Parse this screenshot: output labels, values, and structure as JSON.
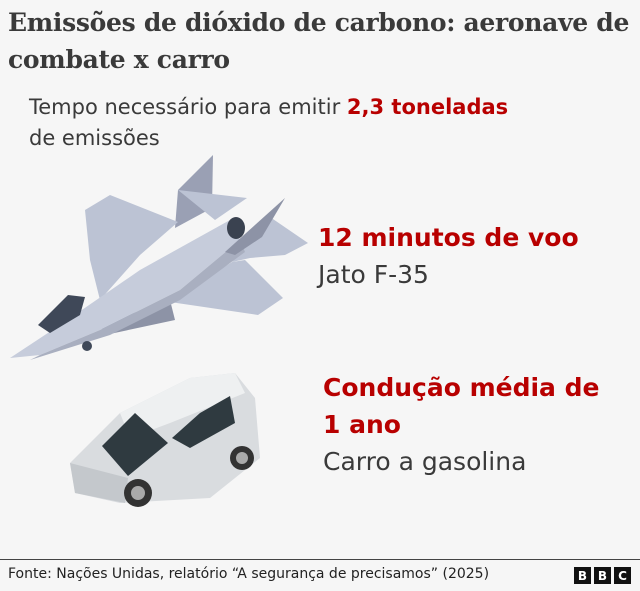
{
  "title": "Emissões de dióxido de carbono: aeronave de combate x carro",
  "subtitle": {
    "prefix": "Tempo necessário para emitir ",
    "highlight": "2,3 toneladas",
    "suffix": "de emissões"
  },
  "items": [
    {
      "headline": "12 minutos de voo",
      "label": "Jato F-35",
      "icon": "fighter-jet-illustration"
    },
    {
      "headline_line1": "Condução média de",
      "headline_line2": "1 ano",
      "label": "Carro a gasolina",
      "icon": "car-illustration"
    }
  ],
  "footer": {
    "source": "Fonte: Nações Unidas, relatório “A segurança de precisamos” (2025)",
    "logo": [
      "B",
      "B",
      "C"
    ]
  },
  "colors": {
    "accent": "#b80000",
    "background": "#f6f6f6",
    "text": "#3a3a3a"
  }
}
